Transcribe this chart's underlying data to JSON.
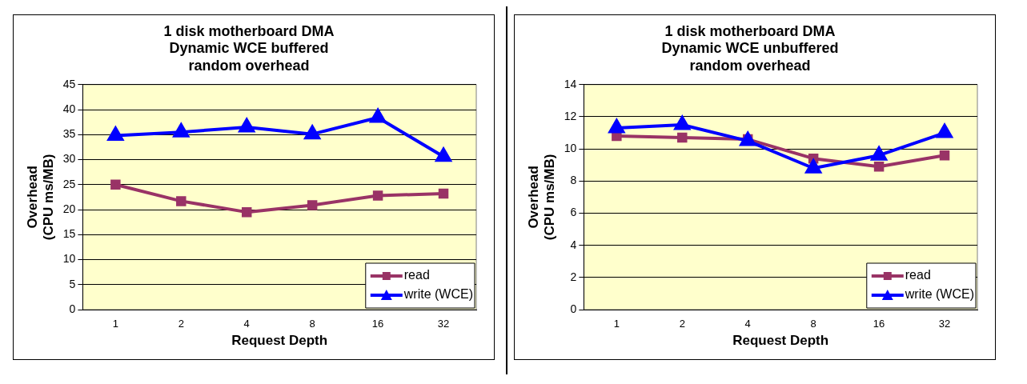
{
  "chart_data": [
    {
      "type": "line",
      "title": "1 disk motherboard DMA\nDynamic WCE buffered\nrandom overhead",
      "xlabel": "Request Depth",
      "ylabel": "Overhead\n(CPU ms/MB)",
      "categories": [
        "1",
        "2",
        "4",
        "8",
        "16",
        "32"
      ],
      "series": [
        {
          "name": "read",
          "color": "#993366",
          "marker": "square",
          "values": [
            25,
            21.7,
            19.5,
            20.9,
            22.8,
            23.2
          ]
        },
        {
          "name": "write (WCE)",
          "color": "#0000ff",
          "marker": "triangle",
          "values": [
            34.8,
            35.5,
            36.5,
            35.1,
            38.4,
            30.6
          ]
        }
      ],
      "ylim": [
        0,
        45
      ],
      "yticks": [
        0,
        5,
        10,
        15,
        20,
        25,
        30,
        35,
        40,
        45
      ],
      "grid": "y",
      "legend": "bottom right"
    },
    {
      "type": "line",
      "title": "1 disk motherboard DMA\nDynamic WCE unbuffered\nrandom overhead",
      "xlabel": "Request Depth",
      "ylabel": "Overhead\n(CPU ms/MB)",
      "categories": [
        "1",
        "2",
        "4",
        "8",
        "16",
        "32"
      ],
      "series": [
        {
          "name": "read",
          "color": "#993366",
          "marker": "square",
          "values": [
            10.8,
            10.7,
            10.6,
            9.4,
            8.9,
            9.6
          ]
        },
        {
          "name": "write (WCE)",
          "color": "#0000ff",
          "marker": "triangle",
          "values": [
            11.3,
            11.5,
            10.5,
            8.8,
            9.6,
            11.0
          ]
        }
      ],
      "ylim": [
        0,
        14
      ],
      "yticks": [
        0,
        2,
        4,
        6,
        8,
        10,
        12,
        14
      ],
      "grid": "y",
      "legend": "bottom right"
    }
  ]
}
